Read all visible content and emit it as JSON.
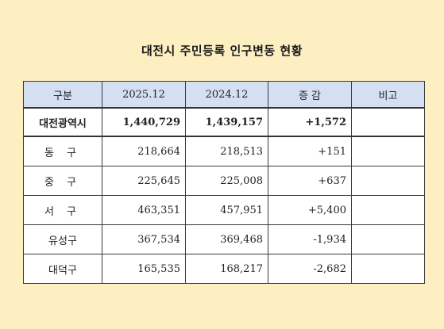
{
  "title": "대전시 주민등록 인구변동 현황",
  "table": {
    "headers": [
      "구분",
      "2025.12",
      "2024.12",
      "증 감",
      "비고"
    ],
    "rows": [
      {
        "name": "대전광역시",
        "y2025": "1,440,729",
        "y2024": "1,439,157",
        "change": "+1,572",
        "note": ""
      },
      {
        "name": "동 구",
        "y2025": "218,664",
        "y2024": "218,513",
        "change": "+151",
        "note": ""
      },
      {
        "name": "중 구",
        "y2025": "225,645",
        "y2024": "225,008",
        "change": "+637",
        "note": ""
      },
      {
        "name": "서 구",
        "y2025": "463,351",
        "y2024": "457,951",
        "change": "+5,400",
        "note": ""
      },
      {
        "name": "유성구",
        "y2025": "367,534",
        "y2024": "369,468",
        "change": "-1,934",
        "note": ""
      },
      {
        "name": "대덕구",
        "y2025": "165,535",
        "y2024": "168,217",
        "change": "-2,682",
        "note": ""
      }
    ]
  }
}
